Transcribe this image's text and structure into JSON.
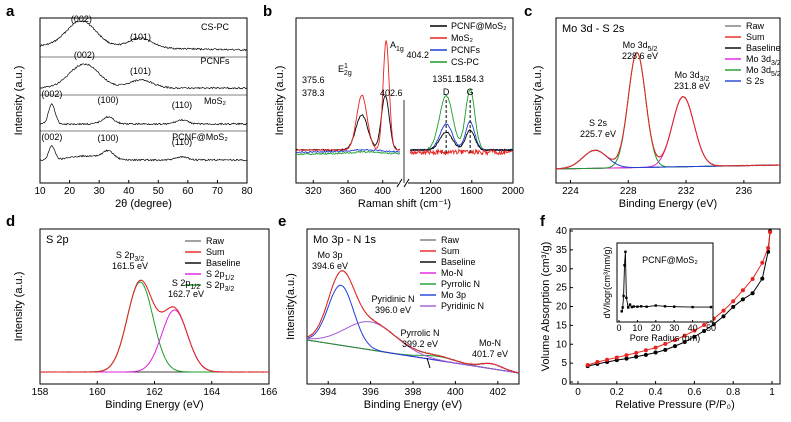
{
  "panels": [
    {
      "letter": "a",
      "type": "xrd",
      "xlabel": "2θ (degree)",
      "ylabel": "Intensity (a.u.)",
      "xlim": [
        10,
        80
      ],
      "xticks": [
        10,
        20,
        30,
        40,
        50,
        60,
        70,
        80
      ],
      "traces": [
        {
          "name": "CS-PC",
          "peaks": [
            {
              "x": 24,
              "label": "(002)"
            },
            {
              "x": 44,
              "label": "(101)"
            }
          ]
        },
        {
          "name": "PCNFs",
          "peaks": [
            {
              "x": 25,
              "label": "(002)"
            },
            {
              "x": 44,
              "label": "(101)"
            }
          ]
        },
        {
          "name": "MoS₂",
          "peaks": [
            {
              "x": 14,
              "label": "(002)"
            },
            {
              "x": 33,
              "label": "(100)"
            },
            {
              "x": 58,
              "label": "(110)"
            }
          ]
        },
        {
          "name": "PCNF@MoS₂",
          "peaks": [
            {
              "x": 14,
              "label": "(002)"
            },
            {
              "x": 33,
              "label": "(100)"
            },
            {
              "x": 58,
              "label": "(110)"
            }
          ]
        }
      ]
    },
    {
      "letter": "b",
      "type": "raman",
      "xlabel": "Raman shift (cm⁻¹)",
      "ylabel": "Intensity (a.u.)",
      "xticks_left": [
        320,
        360,
        400
      ],
      "xticks_right": [
        1200,
        1600,
        2000
      ],
      "legend": [
        {
          "name": "PCNF@MoS₂",
          "color": "#000000"
        },
        {
          "name": "MoS₂",
          "color": "#e8231f"
        },
        {
          "name": "PCNFs",
          "color": "#1f3fd6"
        },
        {
          "name": "CS-PC",
          "color": "#1a9e2a"
        }
      ],
      "annotations": [
        "375.6",
        "378.3",
        "404.2",
        "402.6",
        "E",
        "2g",
        "1",
        "A",
        "1g",
        "D",
        "G",
        "1351.1",
        "1584.3"
      ]
    },
    {
      "letter": "c",
      "type": "xps",
      "title": "Mo 3d - S 2s",
      "xlabel": "Binding Energy (eV)",
      "ylabel": "Intensity (a.u.)",
      "xlim": [
        223,
        238.5
      ],
      "xticks": [
        224,
        228,
        232,
        236
      ],
      "legend": [
        {
          "name": "Raw",
          "color": "#7a7a7a"
        },
        {
          "name": "Sum",
          "color": "#e8231f"
        },
        {
          "name": "Baseline",
          "color": "#000000"
        },
        {
          "name": "Mo 3d",
          "sub": "3/2",
          "color": "#e01ee0"
        },
        {
          "name": "Mo 3d",
          "sub": "5/2",
          "color": "#1a9e2a"
        },
        {
          "name": "S 2s",
          "color": "#1f3fd6"
        }
      ],
      "annotations": [
        {
          "lines": [
            "Mo 3d",
            "228.6 eV"
          ],
          "sub": "5/2"
        },
        {
          "lines": [
            "Mo 3d",
            "231.8 eV"
          ],
          "sub": "3/2"
        },
        {
          "lines": [
            "S 2s",
            "225.7 eV"
          ]
        }
      ]
    },
    {
      "letter": "d",
      "type": "xps",
      "title": "S 2p",
      "xlabel": "Binding Energy (eV)",
      "ylabel": "Intensity (a.u.)",
      "xlim": [
        158,
        166
      ],
      "xticks": [
        158,
        160,
        162,
        164,
        166
      ],
      "legend": [
        {
          "name": "Raw",
          "color": "#7a7a7a"
        },
        {
          "name": "Sum",
          "color": "#e8231f"
        },
        {
          "name": "Baseline",
          "color": "#000000"
        },
        {
          "name": "S 2p",
          "sub": "1/2",
          "color": "#e01ee0"
        },
        {
          "name": "S 2p",
          "sub": "3/2",
          "color": "#1a9e2a"
        }
      ],
      "annotations": [
        {
          "lines": [
            "S 2p",
            "161.5 eV"
          ],
          "sub": "3/2"
        },
        {
          "lines": [
            "S 2p",
            "162.7 eV"
          ],
          "sub": "1/2"
        }
      ]
    },
    {
      "letter": "e",
      "type": "xps",
      "title": "Mo 3p - N 1s",
      "xlabel": "Binding Energy (eV)",
      "ylabel": "Intensity(a.u.)",
      "xlim": [
        393,
        403
      ],
      "xticks": [
        394,
        396,
        398,
        400,
        402
      ],
      "legend": [
        {
          "name": "Raw",
          "color": "#7a7a7a"
        },
        {
          "name": "Sum",
          "color": "#e8231f"
        },
        {
          "name": "Baseline",
          "color": "#000000"
        },
        {
          "name": "Mo-N",
          "color": "#e01ee0"
        },
        {
          "name": "Pyrrolic N",
          "color": "#1a9e2a"
        },
        {
          "name": "Mo 3p",
          "color": "#1f3fd6"
        },
        {
          "name": "Pyridinic N",
          "color": "#a35ad6"
        }
      ],
      "annotations": [
        {
          "lines": [
            "Mo 3p",
            "394.6 eV"
          ]
        },
        {
          "lines": [
            "Pyridinic N",
            "396.0 eV"
          ]
        },
        {
          "lines": [
            "Pyrrolic N",
            "399.2 eV"
          ]
        },
        {
          "lines": [
            "Mo-N",
            "401.7 eV"
          ]
        }
      ]
    },
    {
      "letter": "f",
      "type": "isotherm",
      "xlabel": "Relative Pressure (P/P₀)",
      "ylabel": "Volume Absorption (cm³/g)",
      "xlim": [
        0,
        1
      ],
      "ylim": [
        0,
        40
      ],
      "xticks": [
        0.0,
        0.2,
        0.4,
        0.6,
        0.8,
        1.0
      ],
      "yticks": [
        0,
        5,
        10,
        15,
        20,
        25,
        30,
        35,
        40
      ],
      "adsorption": {
        "x": [
          0.05,
          0.1,
          0.15,
          0.2,
          0.25,
          0.3,
          0.35,
          0.4,
          0.45,
          0.5,
          0.55,
          0.6,
          0.65,
          0.7,
          0.75,
          0.8,
          0.85,
          0.9,
          0.95,
          0.98,
          0.99
        ],
        "y": [
          4.5,
          5.3,
          5.9,
          6.5,
          7.1,
          7.7,
          8.4,
          9.1,
          10.1,
          11.1,
          12.3,
          13.6,
          15.1,
          16.8,
          18.9,
          21.4,
          24.3,
          27.3,
          31.6,
          35.5,
          39.7
        ]
      },
      "desorption": {
        "x": [
          0.05,
          0.1,
          0.15,
          0.2,
          0.25,
          0.3,
          0.35,
          0.4,
          0.45,
          0.5,
          0.55,
          0.6,
          0.65,
          0.7,
          0.75,
          0.8,
          0.85,
          0.9,
          0.95,
          0.98,
          0.99
        ],
        "y": [
          4.2,
          4.8,
          5.3,
          5.8,
          6.2,
          6.7,
          7.2,
          7.8,
          8.5,
          9.5,
          10.6,
          12.0,
          13.5,
          15.3,
          17.4,
          19.9,
          21.9,
          23.5,
          27.4,
          34.5,
          39.9
        ]
      },
      "inset": {
        "label": "PCNF@MoS₂",
        "xlabel": "Pore Radius (nm)",
        "ylabel": "dV/logr(cm³/nm/g)",
        "xticks": [
          0,
          10,
          20,
          30,
          40,
          50
        ],
        "x": [
          1.5,
          2,
          2.5,
          3,
          3.5,
          4,
          5,
          6,
          7,
          8,
          10,
          12,
          15,
          20,
          25,
          30,
          40,
          50
        ],
        "y": [
          0.4,
          0.6,
          1.2,
          2.8,
          3.5,
          1.1,
          0.6,
          0.75,
          0.62,
          0.65,
          0.64,
          0.66,
          0.64,
          0.7,
          0.66,
          0.64,
          0.62,
          0.62
        ]
      }
    }
  ]
}
